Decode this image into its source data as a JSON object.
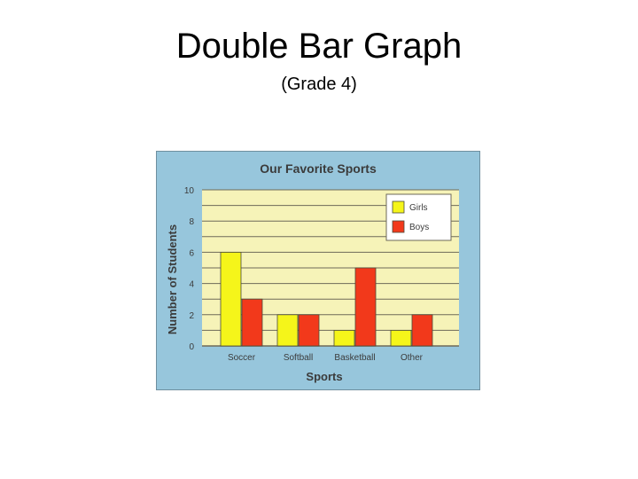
{
  "slide": {
    "title": "Double Bar Graph",
    "subtitle": "(Grade 4)"
  },
  "colors": {
    "panel_background": "#97c6dc",
    "plot_background": "#f6f3b8",
    "girls": "#f5f51a",
    "boys": "#f2391b",
    "gridline": "#6e6a58"
  },
  "chart_data": {
    "type": "bar",
    "title": "Our Favorite Sports",
    "xlabel": "Sports",
    "ylabel": "Number of Students",
    "categories": [
      "Soccer",
      "Softball",
      "Basketball",
      "Other"
    ],
    "series": [
      {
        "name": "Girls",
        "values": [
          6,
          2,
          1,
          1
        ]
      },
      {
        "name": "Boys",
        "values": [
          3,
          2,
          5,
          2
        ]
      }
    ],
    "ylim": [
      0,
      10
    ],
    "yticks": [
      0,
      2,
      4,
      6,
      8,
      10
    ],
    "grid": true,
    "legend_position": "top-right"
  }
}
